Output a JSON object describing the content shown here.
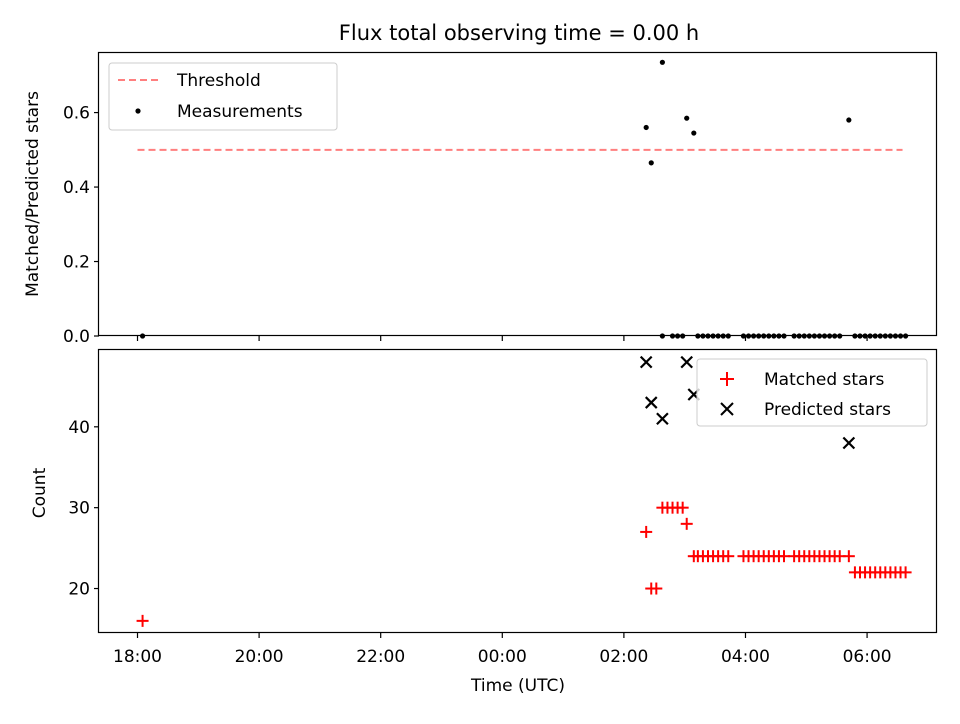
{
  "chart_data": [
    {
      "type": "scatter",
      "title": "Flux total observing time = 0.00 h",
      "xlabel": "",
      "ylabel": "Matched/Predicted stars",
      "ylim": [
        0,
        0.76
      ],
      "yticks": [
        0.0,
        0.2,
        0.4,
        0.6
      ],
      "ytick_labels": [
        "0.0",
        "0.2",
        "0.4",
        "0.6"
      ],
      "grid": false,
      "legend": {
        "placement": "top-left",
        "entries": [
          "Threshold",
          "Measurements"
        ]
      },
      "threshold": {
        "name": "Threshold",
        "value": 0.5,
        "x_start": "18:00",
        "x_end": "06:35",
        "color": "#ff7f7f",
        "style": "dashed"
      },
      "series": [
        {
          "name": "Measurements",
          "color": "#000000",
          "marker": "dot",
          "points": [
            [
              "18:05",
              0.0
            ],
            [
              "02:22",
              0.56
            ],
            [
              "02:27",
              0.465
            ],
            [
              "02:38",
              0.735
            ],
            [
              "03:02",
              0.585
            ],
            [
              "03:09",
              0.545
            ],
            [
              "05:42",
              0.58
            ],
            [
              "02:38",
              0.0
            ],
            [
              "02:48",
              0.0
            ],
            [
              "02:53",
              0.0
            ],
            [
              "02:58",
              0.0
            ],
            [
              "03:13",
              0.0
            ],
            [
              "03:18",
              0.0
            ],
            [
              "03:23",
              0.0
            ],
            [
              "03:28",
              0.0
            ],
            [
              "03:33",
              0.0
            ],
            [
              "03:38",
              0.0
            ],
            [
              "03:43",
              0.0
            ],
            [
              "03:58",
              0.0
            ],
            [
              "04:03",
              0.0
            ],
            [
              "04:08",
              0.0
            ],
            [
              "04:13",
              0.0
            ],
            [
              "04:18",
              0.0
            ],
            [
              "04:23",
              0.0
            ],
            [
              "04:28",
              0.0
            ],
            [
              "04:33",
              0.0
            ],
            [
              "04:38",
              0.0
            ],
            [
              "04:48",
              0.0
            ],
            [
              "04:53",
              0.0
            ],
            [
              "04:58",
              0.0
            ],
            [
              "05:03",
              0.0
            ],
            [
              "05:08",
              0.0
            ],
            [
              "05:13",
              0.0
            ],
            [
              "05:18",
              0.0
            ],
            [
              "05:23",
              0.0
            ],
            [
              "05:28",
              0.0
            ],
            [
              "05:33",
              0.0
            ],
            [
              "05:48",
              0.0
            ],
            [
              "05:53",
              0.0
            ],
            [
              "05:58",
              0.0
            ],
            [
              "06:03",
              0.0
            ],
            [
              "06:08",
              0.0
            ],
            [
              "06:13",
              0.0
            ],
            [
              "06:18",
              0.0
            ],
            [
              "06:23",
              0.0
            ],
            [
              "06:28",
              0.0
            ],
            [
              "06:33",
              0.0
            ],
            [
              "06:38",
              0.0
            ]
          ]
        }
      ]
    },
    {
      "type": "scatter",
      "title": "",
      "xlabel": "Time (UTC)",
      "ylabel": "Count",
      "ylim": [
        14.5,
        49.5
      ],
      "yticks": [
        20,
        30,
        40
      ],
      "ytick_labels": [
        "20",
        "30",
        "40"
      ],
      "xticks": [
        "18:00",
        "20:00",
        "22:00",
        "00:00",
        "02:00",
        "04:00",
        "06:00"
      ],
      "grid": false,
      "legend": {
        "placement": "top-right",
        "entries": [
          "Matched stars",
          "Predicted stars"
        ]
      },
      "series": [
        {
          "name": "Matched stars",
          "color": "#ff0000",
          "marker": "plus",
          "points": [
            [
              "18:05",
              16
            ],
            [
              "02:22",
              27
            ],
            [
              "02:27",
              20
            ],
            [
              "02:32",
              20
            ],
            [
              "02:38",
              30
            ],
            [
              "02:43",
              30
            ],
            [
              "02:48",
              30
            ],
            [
              "02:53",
              30
            ],
            [
              "02:58",
              30
            ],
            [
              "03:02",
              28
            ],
            [
              "03:09",
              24
            ],
            [
              "03:13",
              24
            ],
            [
              "03:18",
              24
            ],
            [
              "03:23",
              24
            ],
            [
              "03:28",
              24
            ],
            [
              "03:33",
              24
            ],
            [
              "03:38",
              24
            ],
            [
              "03:43",
              24
            ],
            [
              "03:58",
              24
            ],
            [
              "04:03",
              24
            ],
            [
              "04:08",
              24
            ],
            [
              "04:13",
              24
            ],
            [
              "04:18",
              24
            ],
            [
              "04:23",
              24
            ],
            [
              "04:28",
              24
            ],
            [
              "04:33",
              24
            ],
            [
              "04:38",
              24
            ],
            [
              "04:48",
              24
            ],
            [
              "04:53",
              24
            ],
            [
              "04:58",
              24
            ],
            [
              "05:03",
              24
            ],
            [
              "05:08",
              24
            ],
            [
              "05:13",
              24
            ],
            [
              "05:18",
              24
            ],
            [
              "05:23",
              24
            ],
            [
              "05:28",
              24
            ],
            [
              "05:33",
              24
            ],
            [
              "05:42",
              24
            ],
            [
              "05:48",
              22
            ],
            [
              "05:53",
              22
            ],
            [
              "05:58",
              22
            ],
            [
              "06:03",
              22
            ],
            [
              "06:08",
              22
            ],
            [
              "06:13",
              22
            ],
            [
              "06:18",
              22
            ],
            [
              "06:23",
              22
            ],
            [
              "06:28",
              22
            ],
            [
              "06:33",
              22
            ],
            [
              "06:38",
              22
            ]
          ]
        },
        {
          "name": "Predicted stars",
          "color": "#000000",
          "marker": "x",
          "points": [
            [
              "02:22",
              48
            ],
            [
              "02:27",
              43
            ],
            [
              "02:38",
              41
            ],
            [
              "03:02",
              48
            ],
            [
              "03:09",
              44
            ],
            [
              "05:42",
              38
            ]
          ]
        }
      ]
    }
  ],
  "x_axis": {
    "min": "17:22",
    "max": "07:09"
  }
}
